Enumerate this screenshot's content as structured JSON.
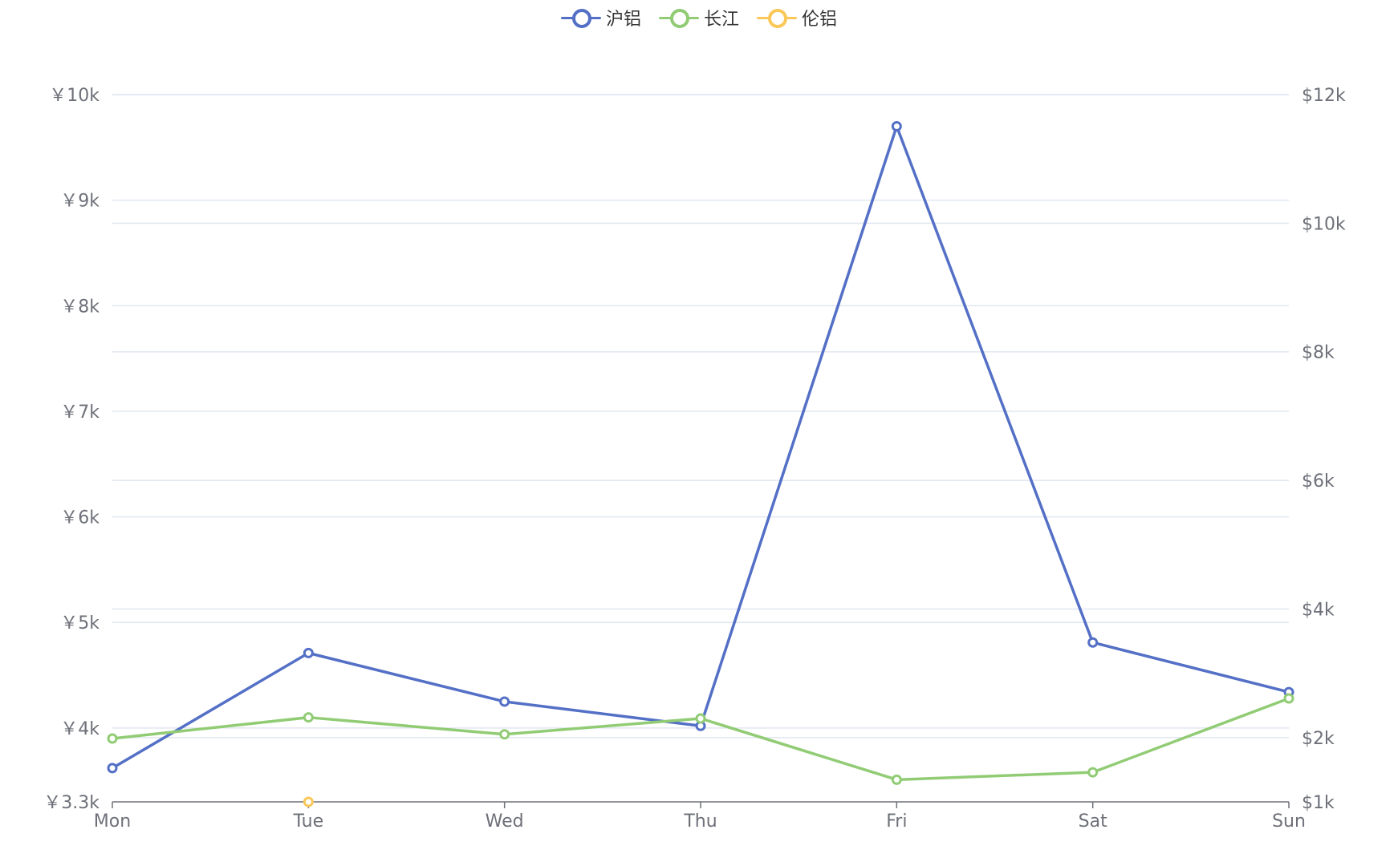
{
  "legend": [
    {
      "name": "沪铝",
      "color": "#5470c6"
    },
    {
      "name": "长江",
      "color": "#91cc75"
    },
    {
      "name": "伦铝",
      "color": "#fac858"
    }
  ],
  "chart_data": {
    "type": "line",
    "categories": [
      "Mon",
      "Tue",
      "Wed",
      "Thu",
      "Fri",
      "Sat",
      "Sun"
    ],
    "y_left": {
      "ticks": [
        3300,
        4000,
        5000,
        6000,
        7000,
        8000,
        9000,
        10000
      ],
      "tick_labels": [
        "￥3.3k",
        "￥4k",
        "￥5k",
        "￥6k",
        "￥7k",
        "￥8k",
        "￥9k",
        "￥10k"
      ],
      "ylim": [
        3300,
        10000
      ]
    },
    "y_right": {
      "ticks": [
        1000,
        2000,
        4000,
        6000,
        8000,
        10000,
        12000
      ],
      "tick_labels": [
        "$1k",
        "$2k",
        "$4k",
        "$6k",
        "$8k",
        "$10k",
        "$12k"
      ],
      "ylim": [
        1000,
        12000
      ]
    },
    "grid": true,
    "legend_position": "top-center",
    "series": [
      {
        "name": "沪铝",
        "axis": "left",
        "color": "#5470c6",
        "values": [
          3620,
          4710,
          4250,
          4020,
          9700,
          4810,
          4340
        ]
      },
      {
        "name": "长江",
        "axis": "left",
        "color": "#91cc75",
        "values": [
          3900,
          4100,
          3940,
          4090,
          3510,
          3580,
          4280
        ]
      },
      {
        "name": "伦铝",
        "axis": "right",
        "color": "#fac858",
        "values": [
          null,
          1000,
          null,
          null,
          null,
          null,
          null
        ]
      }
    ]
  }
}
